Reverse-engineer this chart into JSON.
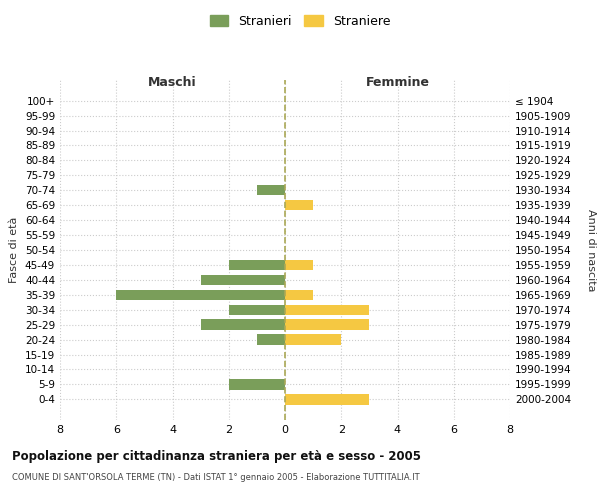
{
  "age_groups": [
    "100+",
    "95-99",
    "90-94",
    "85-89",
    "80-84",
    "75-79",
    "70-74",
    "65-69",
    "60-64",
    "55-59",
    "50-54",
    "45-49",
    "40-44",
    "35-39",
    "30-34",
    "25-29",
    "20-24",
    "15-19",
    "10-14",
    "5-9",
    "0-4"
  ],
  "birth_years": [
    "≤ 1904",
    "1905-1909",
    "1910-1914",
    "1915-1919",
    "1920-1924",
    "1925-1929",
    "1930-1934",
    "1935-1939",
    "1940-1944",
    "1945-1949",
    "1950-1954",
    "1955-1959",
    "1960-1964",
    "1965-1969",
    "1970-1974",
    "1975-1979",
    "1980-1984",
    "1985-1989",
    "1990-1994",
    "1995-1999",
    "2000-2004"
  ],
  "maschi": [
    0,
    0,
    0,
    0,
    0,
    0,
    1,
    0,
    0,
    0,
    0,
    2,
    3,
    6,
    2,
    3,
    1,
    0,
    0,
    2,
    0
  ],
  "femmine": [
    0,
    0,
    0,
    0,
    0,
    0,
    0,
    1,
    0,
    0,
    0,
    1,
    0,
    1,
    3,
    3,
    2,
    0,
    0,
    0,
    3
  ],
  "color_maschi": "#7a9e5a",
  "color_femmine": "#f5c842",
  "title": "Popolazione per cittadinanza straniera per età e sesso - 2005",
  "subtitle": "COMUNE DI SANT'ORSOLA TERME (TN) - Dati ISTAT 1° gennaio 2005 - Elaborazione TUTTITALIA.IT",
  "ylabel_left": "Fasce di età",
  "ylabel_right": "Anni di nascita",
  "xlabel_maschi": "Maschi",
  "xlabel_femmine": "Femmine",
  "legend_stranieri": "Stranieri",
  "legend_straniere": "Straniere",
  "xlim": 8,
  "background_color": "#ffffff",
  "grid_color": "#cccccc"
}
